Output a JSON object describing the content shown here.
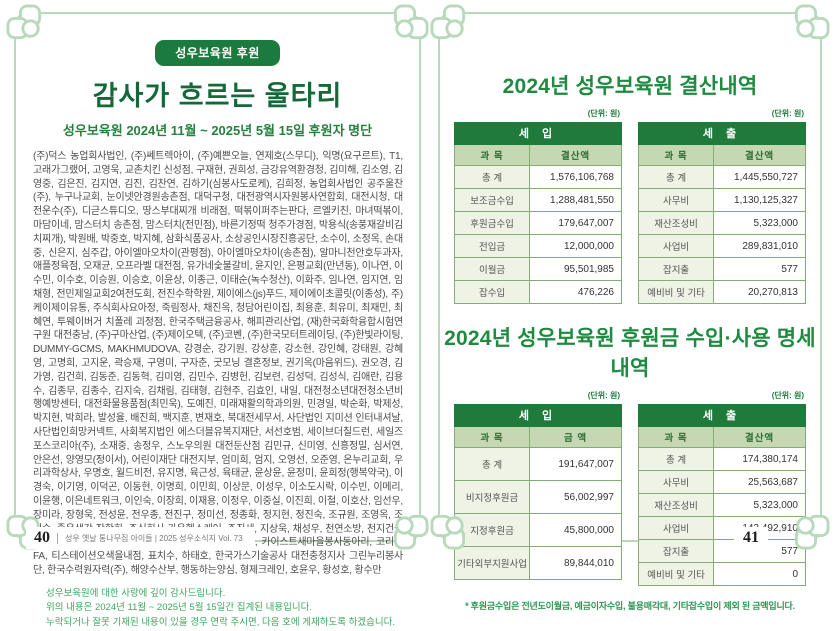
{
  "left": {
    "badge": "성우보육원 후원",
    "title": "감사가 흐르는 울타리",
    "subtitle": "성우보육원 2024년 11월 ~ 2025년 5월 15일 후원자 명단",
    "donors": "(주)덕스 농업회사법인, (주)쎄트렉아이, (주)예쁜오늘, 연제호(스무디), 익명(요구르트), T1, 고래가그랬어, 고영욱, 교촌치킨 신성점, 구재현, 권희성, 금강유역환경청, 김미해, 김소영, 김영중, 김은진, 김지연, 김진, 김찬연, 김하기(심봉사도로케), 김희정, 농업회사법인 공주울찬(주), 누구나교회, 눈이넷안경원송촌점, 대덕구청, 대전광역시자원봉사연합회, 대전시청, 대전운수(주), 디귿스튜디오, 땅스부대찌개 비래점, 떡볶이퍼주는판다, 르엘키친, 마녀떡볶이, 마담이네, 맘스터치 송촌점, 맘스터치(전민점), 바른기정떡 청주가경점, 박용식(송풍재갈비김치찌개), 박원배, 박중호, 박지혜, 삼화식품공사, 소상공인시장진흥공단, 소수이, 소정옥, 손대중, 신은지, 심주갑, 아이엘마오차이(관평점), 아이엘마오차이(송촌점), 알마니천안호두과자, 애플정육점, 오재균, 오프라벨 대전점, 유가네숯불갈비, 윤지인, 은평교회(만년동), 이나연, 이수민, 이수호, 이승원, 이승호, 이윤상, 이종근, 이태순(녹수청산), 이화주, 임나연, 임지연, 임채형, 전민제일교회2여전도회, 전진수학학원, 제이에스(js)푸드, 제이에이초콜릿(이종성), 주)케이제이유통, 주식회사요아정, 죽림정사, 채진옥, 청담어린이집, 최용훈, 최유미, 최재민, 최혜연, 투웨이버거 치폴레 괴정점, 한국주택금융공사, 해피관리산업, (재)한국화학융합시험연구원 대전충남, (주)구마산업, (주)제이오텍, (주)코벤, (주)한국모터트레이딩, (주)한빛라이팅, DUMMY-GCMS, MAKHMUDOVA, 강경순, 강기원, 강상훈, 강소현, 강인혜, 강태원, 강혜영, 고명희, 고지운, 곽승재, 구영미, 구자춘, 굿모닝 결혼정보, 권기옥(마음위드), 권오경, 김가영, 김건희, 김동준, 김동혁, 김미영, 김민수, 김병헌, 김보련, 김성덕, 김성식, 김애란, 김용수, 김종무, 김종수, 김지숙, 김채림, 김태형, 김현주, 김효인, 내일, 대전청소년대전청소년비행예방센터, 대전화물용품점(최민욱), 도예진, 미래재활의학과의원, 민경일, 박순화, 박제성, 박지현, 박희라, 발성율, 배진희, 백지훈, 변재호, 북대전세무서, 사단법인 지미션 인터내셔날, 사단법인희망커넥트, 사회복지법인 에스더블유복지재단, 서선호범, 세이브더칠드런, 세일즈포스코리아(주), 소재중, 송정우, 스노우의원 대전둔산점 김민규, 신미영, 신흥정밀, 심서연, 안은선, 양영모(정이서), 어린이재단 대전지부, 엄미희, 엄지, 오영선, 오준영, 온누리교회, 우리과학상사, 우명호, 월드비전, 유지명, 육근성, 육태균, 윤상윤, 윤정미, 윤희정(행복약국), 이경숙, 이기영, 이덕곤, 이동현, 이명희, 이민희, 이상문, 이성우, 이소도시락, 이수빈, 이메리, 이윤행, 이은네트워크, 이인숙, 이장희, 이재용, 이정우, 이중실, 이진희, 이철, 이호산, 임선우, 장미라, 장형욱, 전성윤, 전우종, 전진구, 정미선, 정종화, 정지현, 정진숙, 조규원, 조영옥, 조희숙, 좋은생각 장학회, 주식회사 가온헬스케어, 주진세, 지상욱, 채성우, 천연소방, 천지건설산업주식회사, 최민경, 최병관, 최상설, 최정선, 최지원, 카이스트새마을봉사동아리, 코리아FA, 티스테이션오색을내점, 표치수, 하태호, 한국가스기술공사 대전충청지사 그린누리봉사단, 한국수력원자력(주), 해양수산부, 행동하는양심, 형제크레인, 호윤우, 황성호, 황수만",
    "notes": [
      "성우보육원에 대한 사랑에 깊이 감사드립니다.",
      "위의 내용은 2024년 11월 ~ 2025년 5월 15일간 집계된 내용입니다.",
      "누락되거나 잘못 기재된 내용이 있을 경우 연락 주시면, 다음 호에 게재하도록 하겠습니다."
    ],
    "page_number": "40",
    "footer_text": "성우 옛날 통나무집 아이들 | 2025 성우소식지 Vol. 73"
  },
  "right": {
    "section1": {
      "title": "2024년 성우보육원 결산내역",
      "unit": "(단위: 원)",
      "tables": [
        {
          "header": "세 입",
          "cols": [
            "과 목",
            "결산액"
          ],
          "rows": [
            [
              "총 계",
              "1,576,106,768"
            ],
            [
              "보조금수입",
              "1,288,481,550"
            ],
            [
              "후원금수입",
              "179,647,007"
            ],
            [
              "전입금",
              "12,000,000"
            ],
            [
              "이월금",
              "95,501,985"
            ],
            [
              "잡수입",
              "476,226"
            ]
          ]
        },
        {
          "header": "세 출",
          "cols": [
            "과 목",
            "결산액"
          ],
          "rows": [
            [
              "총 계",
              "1,445,550,727"
            ],
            [
              "사무비",
              "1,130,125,327"
            ],
            [
              "재산조성비",
              "5,323,000"
            ],
            [
              "사업비",
              "289,831,010"
            ],
            [
              "잡지출",
              "577"
            ],
            [
              "예비비 및 기타",
              "20,270,813"
            ]
          ]
        }
      ]
    },
    "section2": {
      "title": "2024년 성우보육원 후원금 수입·사용 명세내역",
      "unit": "(단위: 원)",
      "tables": [
        {
          "header": "세 입",
          "cols": [
            "과 목",
            "금 액"
          ],
          "rows": [
            [
              "총 계",
              "191,647,007"
            ],
            [
              "비지정후원금",
              "56,002,997"
            ],
            [
              "지정후원금",
              "45,800,000"
            ],
            [
              "기타외부지원사업",
              "89,844,010"
            ]
          ]
        },
        {
          "header": "세 출",
          "cols": [
            "과 목",
            "결산액"
          ],
          "rows": [
            [
              "총 계",
              "174,380,174"
            ],
            [
              "사무비",
              "25,563,687"
            ],
            [
              "재산조성비",
              "5,323,000"
            ],
            [
              "사업비",
              "143,492,910"
            ],
            [
              "잡지출",
              "577"
            ],
            [
              "예비비 및 기타",
              "0"
            ]
          ]
        }
      ],
      "note": "* 후원금수입은 전년도이월금, 예금이자수입, 불용매각대, 기타잡수입이 제외 된 금액입니다."
    },
    "page_number": "41"
  }
}
